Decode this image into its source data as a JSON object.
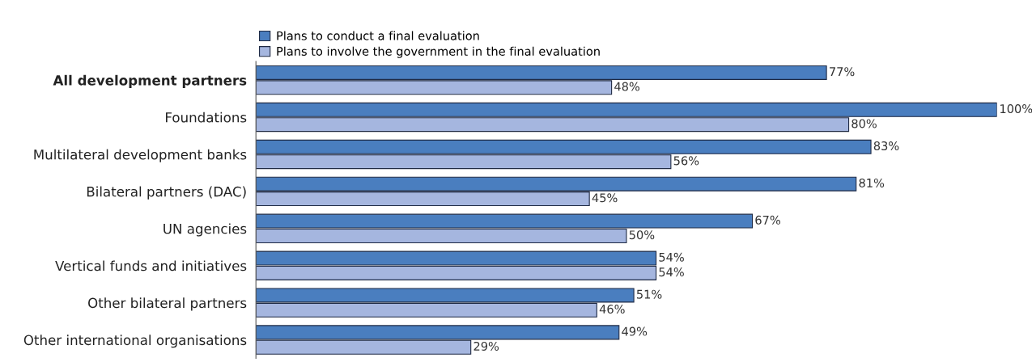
{
  "chart_data": {
    "type": "bar",
    "orientation": "horizontal",
    "categories": [
      "All development partners",
      "Foundations",
      "Multilateral development banks",
      "Bilateral partners (DAC)",
      "UN agencies",
      "Vertical funds and initiatives",
      "Other bilateral partners",
      "Other international organisations"
    ],
    "series": [
      {
        "name": "Plans to conduct a final evaluation",
        "color": "#4a7ebf",
        "values": [
          77,
          100,
          83,
          81,
          67,
          54,
          51,
          49
        ],
        "value_labels": [
          "77%",
          "100%",
          "83%",
          "81%",
          "67%",
          "54%",
          "51%",
          "49%"
        ]
      },
      {
        "name": "Plans to involve the government in the final evaluation",
        "color": "#a5b6df",
        "values": [
          48,
          80,
          56,
          45,
          50,
          54,
          46,
          29
        ],
        "value_labels": [
          "48%",
          "80%",
          "56%",
          "45%",
          "50%",
          "54%",
          "46%",
          "29%"
        ]
      }
    ],
    "legend": "top left",
    "grid": false
  }
}
